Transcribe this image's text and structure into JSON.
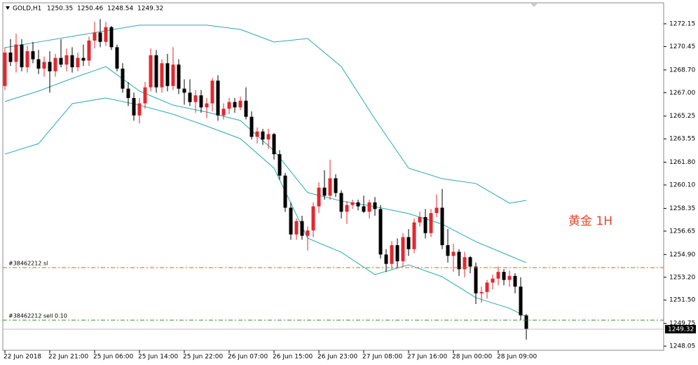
{
  "chart_data": {
    "type": "candlestick",
    "symbol": "GOLD,H1",
    "annotation": "黄金 1H",
    "up_color": "#e3272d",
    "down_color": "#000000",
    "band_color": "#27a8b4",
    "ylim": [
      1247.74,
      1273.72
    ],
    "yticks": [
      1272.15,
      1270.45,
      {
        "value": 1268.7,
        "label": "1268.70"
      },
      {
        "value": 1267,
        "label": "1267.00"
      },
      1265.25,
      1263.55,
      {
        "value": 1261.8,
        "label": "1261.80"
      },
      {
        "value": 1260.1,
        "label": "1260.10"
      },
      1258.35,
      1256.65,
      {
        "value": 1254.9,
        "label": "1254.90"
      },
      {
        "value": 1253.2,
        "label": "1253.20"
      },
      {
        "value": 1251.5,
        "label": "1251.50"
      },
      1249.75,
      1248.05
    ],
    "categories": [
      "22 Jun 2018",
      null,
      null,
      null,
      null,
      null,
      null,
      null,
      "22 Jun 21:00",
      null,
      null,
      null,
      null,
      null,
      null,
      null,
      "25 Jun 06:00",
      null,
      null,
      null,
      null,
      null,
      null,
      null,
      "25 Jun 14:00",
      null,
      null,
      null,
      null,
      null,
      null,
      null,
      "25 Jun 22:00",
      null,
      null,
      null,
      null,
      null,
      null,
      null,
      "26 Jun 07:00",
      null,
      null,
      null,
      null,
      null,
      null,
      null,
      "26 Jun 15:00",
      null,
      null,
      null,
      null,
      null,
      null,
      null,
      "26 Jun 23:00",
      null,
      null,
      null,
      null,
      null,
      null,
      null,
      "27 Jun 08:00",
      null,
      null,
      null,
      null,
      null,
      null,
      null,
      "27 Jun 16:00",
      null,
      null,
      null,
      null,
      null,
      null,
      null,
      "28 Jun 00:00",
      null,
      null,
      null,
      null,
      null,
      null,
      null,
      "28 Jun 09:00",
      null,
      null,
      null,
      null,
      null
    ],
    "open": [
      1267.5,
      1270.0,
      1269.3,
      1270.6,
      1268.9,
      1270.1,
      1269.5,
      1268.8,
      1269.3,
      1268.6,
      1269.6,
      1269.1,
      1269.8,
      1268.9,
      1269.6,
      1269.4,
      1270.9,
      1271.5,
      1270.8,
      1271.9,
      1270.4,
      1268.8,
      1267.3,
      1266.6,
      1265.3,
      1266.2,
      1267.4,
      1269.8,
      1267.4,
      1269.2,
      1267.5,
      1269.1,
      1267.3,
      1267.0,
      1266.3,
      1266.8,
      1265.9,
      1266.2,
      1267.9,
      1265.3,
      1265.8,
      1266.3,
      1265.9,
      1266.4,
      1265.2,
      1263.7,
      1264.1,
      1263.5,
      1263.9,
      1262.4,
      1260.8,
      1258.4,
      1256.4,
      1257.4,
      1256.3,
      1256.7,
      1258.5,
      1259.9,
      1259.3,
      1260.6,
      1259.5,
      1258.1,
      1258.6,
      1258.8,
      1258.5,
      1258.1,
      1258.8,
      1258.3,
      1254.9,
      1254.2,
      1255.6,
      1254.4,
      1256.2,
      1255.3,
      1257.3,
      1257.7,
      1256.5,
      1258.0,
      1258.4,
      1255.6,
      1254.8,
      1255.1,
      1253.8,
      1254.7,
      1254.0,
      1252.0,
      1252.1,
      1252.8,
      1253.1,
      1253.6,
      1253.0,
      1253.3,
      1252.5,
      1250.35
    ],
    "high": [
      1270.4,
      1271.0,
      1271.4,
      1271.0,
      1270.5,
      1270.8,
      1270.2,
      1269.7,
      1270.1,
      1269.9,
      1271.0,
      1270.3,
      1270.4,
      1270.0,
      1270.6,
      1271.2,
      1272.3,
      1272.5,
      1272.3,
      1272.0,
      1270.6,
      1269.2,
      1267.8,
      1267.0,
      1266.6,
      1267.8,
      1270.3,
      1270.2,
      1269.5,
      1269.9,
      1270.4,
      1269.5,
      1268.0,
      1268.0,
      1267.2,
      1267.2,
      1266.6,
      1268.1,
      1268.3,
      1266.2,
      1266.6,
      1266.6,
      1266.7,
      1267.4,
      1265.6,
      1264.4,
      1264.3,
      1264.3,
      1264.0,
      1262.7,
      1261.0,
      1258.8,
      1257.6,
      1257.8,
      1257.0,
      1258.8,
      1260.3,
      1261.2,
      1262.0,
      1260.9,
      1259.7,
      1258.9,
      1259.0,
      1259.0,
      1259.3,
      1259.0,
      1259.2,
      1258.6,
      1255.3,
      1255.9,
      1256.1,
      1256.5,
      1256.8,
      1257.6,
      1258.1,
      1258.3,
      1258.3,
      1259.4,
      1259.8,
      1256.8,
      1255.7,
      1255.3,
      1255.1,
      1254.8,
      1254.3,
      1252.5,
      1253.0,
      1253.4,
      1254.0,
      1253.8,
      1253.7,
      1253.5,
      1253.2,
      1250.46
    ],
    "low": [
      1267.2,
      1269.0,
      1268.5,
      1268.6,
      1268.5,
      1269.2,
      1268.4,
      1268.2,
      1267.0,
      1268.2,
      1268.9,
      1268.6,
      1268.5,
      1268.6,
      1269.0,
      1269.0,
      1270.3,
      1270.4,
      1270.5,
      1270.2,
      1268.6,
      1267.0,
      1266.0,
      1264.9,
      1264.7,
      1265.8,
      1267.1,
      1267.0,
      1267.0,
      1267.1,
      1267.2,
      1266.9,
      1266.1,
      1266.0,
      1265.5,
      1265.5,
      1265.1,
      1265.6,
      1264.9,
      1265.0,
      1265.4,
      1265.5,
      1265.7,
      1265.0,
      1263.5,
      1263.2,
      1263.1,
      1262.8,
      1262.0,
      1260.5,
      1258.1,
      1256.0,
      1256.0,
      1256.0,
      1255.2,
      1256.2,
      1258.0,
      1259.0,
      1259.0,
      1259.2,
      1257.6,
      1257.2,
      1258.3,
      1258.2,
      1258.0,
      1257.6,
      1257.8,
      1254.6,
      1253.6,
      1253.8,
      1253.9,
      1254.0,
      1254.8,
      1255.0,
      1257.0,
      1256.1,
      1256.2,
      1257.7,
      1255.3,
      1254.3,
      1253.6,
      1253.3,
      1253.2,
      1253.5,
      1251.2,
      1251.3,
      1251.6,
      1252.3,
      1252.6,
      1252.6,
      1252.5,
      1252.0,
      1250.0,
      1248.54
    ],
    "close": [
      1270.0,
      1269.3,
      1270.6,
      1268.9,
      1270.1,
      1269.5,
      1268.8,
      1269.3,
      1268.6,
      1269.6,
      1269.1,
      1269.8,
      1268.9,
      1269.6,
      1269.4,
      1270.9,
      1271.5,
      1270.8,
      1271.9,
      1270.4,
      1268.8,
      1267.3,
      1266.6,
      1265.3,
      1266.2,
      1267.4,
      1269.8,
      1267.4,
      1269.2,
      1267.5,
      1269.1,
      1267.3,
      1267.0,
      1266.3,
      1266.8,
      1265.9,
      1266.2,
      1267.9,
      1265.3,
      1265.8,
      1266.3,
      1265.9,
      1266.4,
      1265.2,
      1263.7,
      1264.1,
      1263.5,
      1263.9,
      1262.4,
      1260.8,
      1258.4,
      1256.4,
      1257.4,
      1256.3,
      1256.7,
      1258.5,
      1259.9,
      1259.3,
      1260.6,
      1259.5,
      1258.1,
      1258.6,
      1258.8,
      1258.5,
      1258.1,
      1258.8,
      1258.3,
      1254.9,
      1254.2,
      1255.6,
      1254.4,
      1256.2,
      1255.3,
      1257.3,
      1257.7,
      1256.5,
      1258.0,
      1258.4,
      1255.6,
      1254.8,
      1255.1,
      1253.8,
      1254.7,
      1254.0,
      1252.0,
      1252.1,
      1252.8,
      1253.1,
      1253.6,
      1253.0,
      1253.3,
      1252.5,
      1250.35,
      1249.32
    ],
    "band_x": [
      0,
      6,
      12,
      18,
      24,
      30,
      36,
      42,
      48,
      54,
      60,
      66,
      72,
      78,
      84,
      90,
      93
    ],
    "bands": {
      "upper": [
        1270.37,
        1270.79,
        1271.21,
        1271.63,
        1272.05,
        1272.05,
        1272.05,
        1271.73,
        1270.79,
        1271.05,
        1268.95,
        1265.03,
        1261.36,
        1260.57,
        1260.21,
        1258.74,
        1258.95
      ],
      "middle": [
        1266.34,
        1267.12,
        1268.07,
        1268.95,
        1267.12,
        1266.07,
        1265.55,
        1264.92,
        1262.67,
        1259.53,
        1258.9,
        1258.48,
        1257.96,
        1257.17,
        1255.86,
        1254.81,
        1254.29
      ],
      "lower": [
        1262.41,
        1263.19,
        1266.18,
        1266.6,
        1266.07,
        1265.39,
        1264.5,
        1263.56,
        1261.36,
        1256.12,
        1255.07,
        1253.4,
        1254.13,
        1253.24,
        1251.67,
        1250.88,
        1250.25
      ]
    },
    "levels": [
      {
        "label": "#38462212 sl",
        "value": 1253.92,
        "color": "#e8562a"
      },
      {
        "label": "#38462212 sell 0.10",
        "value": 1249.99,
        "color": "#2e8b2e"
      }
    ]
  }
}
